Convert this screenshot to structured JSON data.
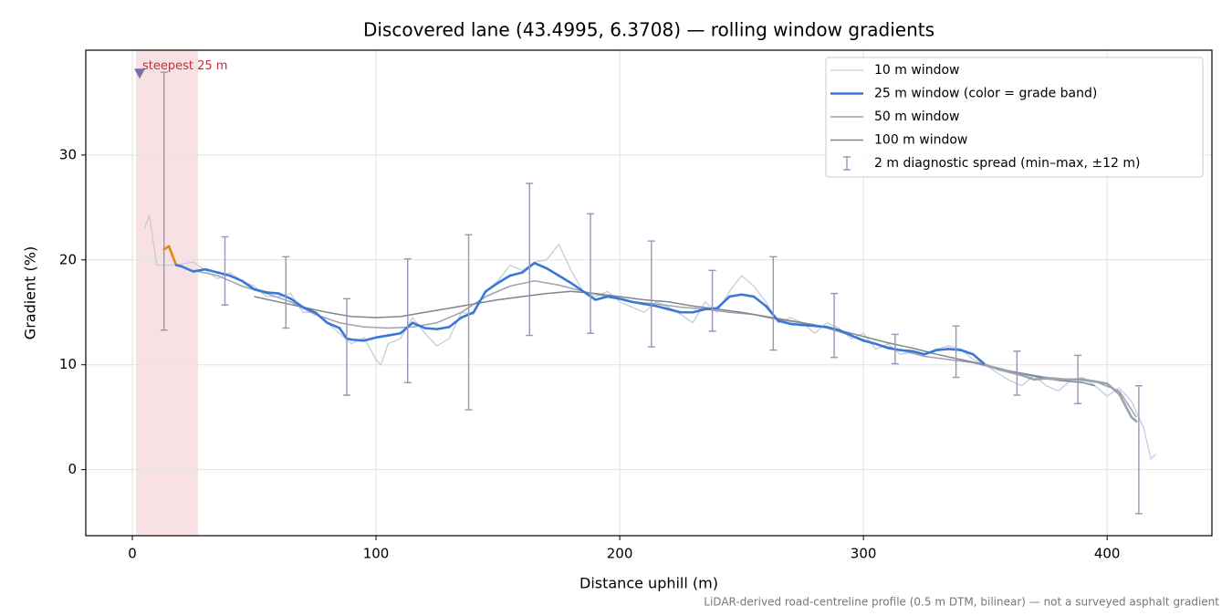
{
  "chart_data": {
    "type": "line",
    "title": "Discovered lane (43.4995, 6.3708) — rolling window gradients",
    "x_label": "Distance uphill (m)",
    "y_label": "Gradient (%)",
    "footnote": "LiDAR-derived road-centreline profile (0.5 m DTM, bilinear) — not a surveyed asphalt gradient",
    "xlim": [
      -19.1,
      443
    ],
    "ylim": [
      -6.3,
      40
    ],
    "xticks": [
      0,
      100,
      200,
      300,
      400
    ],
    "yticks": [
      0,
      10,
      20,
      30
    ],
    "grid": true,
    "legend": "upper right",
    "highlight_span": {
      "x": [
        1.5,
        27
      ],
      "color": "#e8a9b0"
    },
    "annotation": {
      "text": "steepest 25 m",
      "x": 3,
      "y": 37.8,
      "color": "#c0303a",
      "marker_color": "#7a70a8"
    },
    "series": [
      {
        "name": "10 m window",
        "color": "#c8ccd6",
        "width": 1.3,
        "x": [
          5,
          7,
          10,
          15,
          20,
          25,
          30,
          35,
          40,
          45,
          50,
          55,
          60,
          65,
          70,
          75,
          80,
          85,
          90,
          95,
          100,
          102,
          105,
          110,
          115,
          120,
          125,
          130,
          135,
          140,
          145,
          150,
          155,
          160,
          165,
          170,
          175,
          180,
          185,
          190,
          195,
          200,
          205,
          210,
          215,
          220,
          225,
          230,
          235,
          240,
          245,
          250,
          255,
          260,
          265,
          270,
          275,
          280,
          285,
          290,
          295,
          300,
          305,
          310,
          315,
          320,
          325,
          330,
          335,
          340,
          345,
          350,
          355,
          360,
          365,
          370,
          375,
          380,
          385,
          390,
          395,
          400,
          405,
          410,
          415,
          418,
          420
        ],
        "values": [
          23,
          24.3,
          19.5,
          19.5,
          19.6,
          19.8,
          19.0,
          18.2,
          18.8,
          18.0,
          17.5,
          16.5,
          16.5,
          16.8,
          15.0,
          15.0,
          14.0,
          13.0,
          12.0,
          12.6,
          10.5,
          10.0,
          12.0,
          12.5,
          14.5,
          13.0,
          11.8,
          12.5,
          15.0,
          14.8,
          17.0,
          18.0,
          19.5,
          19.0,
          19.8,
          20.0,
          21.5,
          19.0,
          17.0,
          16.5,
          17.0,
          16.0,
          15.5,
          15.0,
          16.0,
          15.5,
          14.8,
          14.0,
          16.0,
          15.0,
          17.0,
          18.5,
          17.5,
          16.0,
          14.0,
          14.5,
          14.0,
          13.0,
          14.0,
          13.5,
          12.5,
          13.0,
          11.5,
          12.0,
          11.0,
          11.2,
          11.0,
          11.5,
          11.8,
          11.5,
          10.5,
          10.0,
          9.2,
          8.5,
          8.0,
          9.0,
          8.0,
          7.5,
          8.5,
          8.8,
          8.0,
          7.0,
          7.8,
          6.5,
          4.0,
          1.0,
          1.5
        ]
      },
      {
        "name": "25 m window (color = grade band)",
        "color": "#3a78d8",
        "width": 2.6,
        "bands": [
          {
            "min": 20,
            "color": "#e08a10"
          },
          {
            "max": 10,
            "color": "#9aa3b2"
          }
        ],
        "x": [
          13,
          15,
          18,
          20,
          25,
          30,
          35,
          40,
          45,
          50,
          55,
          60,
          65,
          70,
          75,
          80,
          85,
          88,
          90,
          95,
          100,
          105,
          110,
          115,
          120,
          125,
          130,
          135,
          140,
          145,
          150,
          155,
          160,
          165,
          170,
          175,
          180,
          185,
          190,
          195,
          200,
          205,
          210,
          215,
          220,
          225,
          230,
          235,
          240,
          245,
          250,
          255,
          260,
          265,
          270,
          275,
          280,
          285,
          290,
          295,
          300,
          305,
          310,
          315,
          320,
          325,
          330,
          335,
          340,
          345,
          350,
          355,
          360,
          365,
          370,
          375,
          380,
          385,
          390,
          395,
          400,
          405,
          410,
          412
        ],
        "values": [
          21,
          21.3,
          19.5,
          19.4,
          18.9,
          19.1,
          18.8,
          18.5,
          18.0,
          17.2,
          16.9,
          16.8,
          16.3,
          15.5,
          15.0,
          14.0,
          13.5,
          12.5,
          12.4,
          12.3,
          12.6,
          12.8,
          13.0,
          14.0,
          13.5,
          13.4,
          13.6,
          14.5,
          15.0,
          17.0,
          17.8,
          18.5,
          18.8,
          19.7,
          19.2,
          18.5,
          17.8,
          17.0,
          16.2,
          16.5,
          16.3,
          16.0,
          15.8,
          15.6,
          15.3,
          15.0,
          15.0,
          15.3,
          15.4,
          16.5,
          16.7,
          16.5,
          15.6,
          14.2,
          13.9,
          13.8,
          13.7,
          13.6,
          13.3,
          12.8,
          12.3,
          12.0,
          11.6,
          11.4,
          11.3,
          11.0,
          11.4,
          11.5,
          11.4,
          11.0,
          10.0,
          9.6,
          9.3,
          9.0,
          8.6,
          8.7,
          8.6,
          8.6,
          8.6,
          8.4,
          8.2,
          7.2,
          5.0,
          4.6
        ]
      },
      {
        "name": "50 m window",
        "color": "#9ba3b0",
        "width": 1.5,
        "x": [
          25,
          35,
          45,
          55,
          65,
          75,
          85,
          95,
          105,
          115,
          125,
          135,
          145,
          155,
          165,
          175,
          185,
          195,
          205,
          215,
          225,
          235,
          245,
          255,
          265,
          275,
          285,
          295,
          305,
          315,
          325,
          335,
          345,
          355,
          365,
          375,
          385,
          395,
          405,
          412
        ],
        "values": [
          19.0,
          18.5,
          17.5,
          16.8,
          16.0,
          14.8,
          14.0,
          13.6,
          13.5,
          13.6,
          14.0,
          15.0,
          16.5,
          17.5,
          18.0,
          17.6,
          17.0,
          16.5,
          16.0,
          15.8,
          15.5,
          15.3,
          15.0,
          14.8,
          14.3,
          14.0,
          13.5,
          12.8,
          12.0,
          11.4,
          10.8,
          10.5,
          10.2,
          9.6,
          9.2,
          8.8,
          8.6,
          8.4,
          7.5,
          5.0
        ]
      },
      {
        "name": "100 m window",
        "color": "#7e8590",
        "width": 1.5,
        "x": [
          50,
          60,
          70,
          80,
          90,
          100,
          110,
          120,
          130,
          140,
          150,
          160,
          170,
          180,
          190,
          200,
          210,
          220,
          230,
          240,
          250,
          260,
          270,
          280,
          290,
          300,
          310,
          320,
          330,
          340,
          350,
          360,
          370,
          380,
          390,
          395
        ],
        "values": [
          16.5,
          16.0,
          15.5,
          15.0,
          14.6,
          14.5,
          14.6,
          15.0,
          15.4,
          15.8,
          16.2,
          16.5,
          16.8,
          17.0,
          16.8,
          16.5,
          16.2,
          16.0,
          15.6,
          15.3,
          15.0,
          14.6,
          14.2,
          13.8,
          13.3,
          12.7,
          12.1,
          11.6,
          11.0,
          10.5,
          10.0,
          9.4,
          8.9,
          8.5,
          8.3,
          8.0
        ]
      },
      {
        "name": "2 m diagnostic spread (min–max, ±12 m)",
        "type": "errorbar",
        "color": "#9a94b8",
        "x": [
          13,
          38,
          63,
          88,
          113,
          138,
          163,
          188,
          213,
          238,
          263,
          288,
          313,
          338,
          363,
          388,
          413
        ],
        "lower": [
          13.3,
          15.7,
          13.5,
          7.1,
          8.3,
          5.7,
          12.8,
          13.0,
          11.7,
          13.2,
          11.4,
          10.7,
          10.1,
          8.8,
          7.1,
          6.3,
          -4.2
        ],
        "upper": [
          37.9,
          22.2,
          20.3,
          16.3,
          20.1,
          22.4,
          27.3,
          24.4,
          21.8,
          19.0,
          20.3,
          16.8,
          12.9,
          13.7,
          11.3,
          10.9,
          8.0
        ]
      }
    ]
  }
}
